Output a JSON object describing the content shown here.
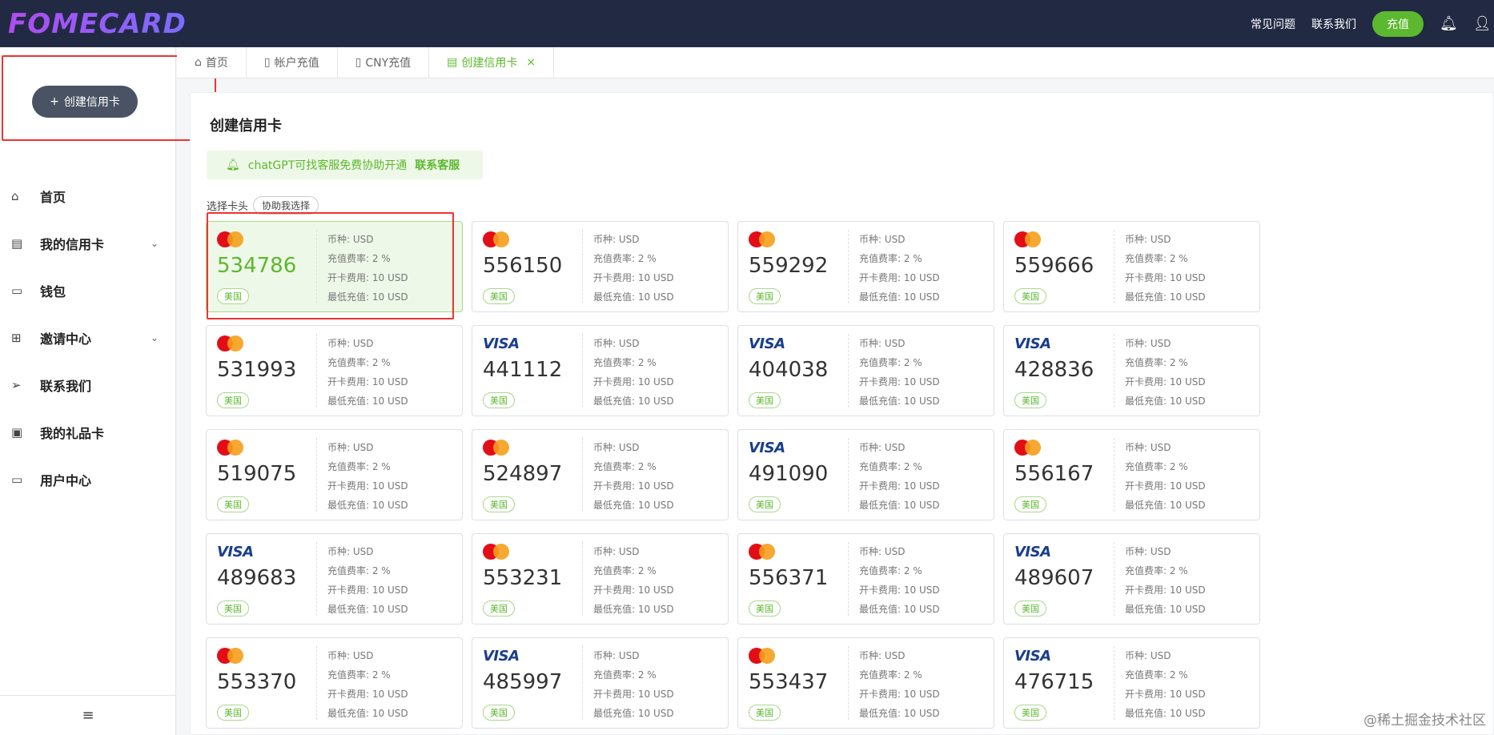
{
  "header": {
    "logo": "FOMECARD",
    "faq": "常见问题",
    "contact": "联系我们",
    "recharge": "充值",
    "icons": [
      "bell-icon",
      "user-icon"
    ]
  },
  "sidebar": {
    "create_button": "创建信用卡",
    "items": [
      {
        "label": "首页",
        "icon": "home-icon",
        "expandable": false
      },
      {
        "label": "我的信用卡",
        "icon": "card-icon",
        "expandable": true
      },
      {
        "label": "钱包",
        "icon": "wallet-icon",
        "expandable": false
      },
      {
        "label": "邀请中心",
        "icon": "gift-icon",
        "expandable": true
      },
      {
        "label": "联系我们",
        "icon": "send-icon",
        "expandable": false
      },
      {
        "label": "我的礼品卡",
        "icon": "giftcard-icon",
        "expandable": false
      },
      {
        "label": "用户中心",
        "icon": "id-card-icon",
        "expandable": false
      }
    ],
    "collapse_icon": "menu-icon"
  },
  "tabs": [
    {
      "label": "首页",
      "icon": "home-icon"
    },
    {
      "label": "帐户充值",
      "icon": "doc-icon"
    },
    {
      "label": "CNY充值",
      "icon": "doc-icon"
    },
    {
      "label": "创建信用卡",
      "icon": "card-icon",
      "active": true,
      "closable": true
    }
  ],
  "main": {
    "title": "创建信用卡",
    "notice": {
      "text": "chatGPT可找客服免费协助开通",
      "link": "联系客服"
    },
    "select_label": "选择卡头",
    "help_button": "协助我选择",
    "labels": {
      "currency": "币种: ",
      "rate": "充值费率: ",
      "fee": "开卡费用: ",
      "min": "最低充值: "
    },
    "cards": [
      {
        "bin": "534786",
        "brand": "mastercard",
        "selected": true
      },
      {
        "bin": "556150",
        "brand": "mastercard"
      },
      {
        "bin": "559292",
        "brand": "mastercard"
      },
      {
        "bin": "559666",
        "brand": "mastercard"
      },
      {
        "bin": "531993",
        "brand": "mastercard"
      },
      {
        "bin": "441112",
        "brand": "visa"
      },
      {
        "bin": "404038",
        "brand": "visa"
      },
      {
        "bin": "428836",
        "brand": "visa"
      },
      {
        "bin": "519075",
        "brand": "mastercard"
      },
      {
        "bin": "524897",
        "brand": "mastercard"
      },
      {
        "bin": "491090",
        "brand": "visa"
      },
      {
        "bin": "556167",
        "brand": "mastercard"
      },
      {
        "bin": "489683",
        "brand": "visa"
      },
      {
        "bin": "553231",
        "brand": "mastercard"
      },
      {
        "bin": "556371",
        "brand": "mastercard"
      },
      {
        "bin": "489607",
        "brand": "visa"
      },
      {
        "bin": "553370",
        "brand": "mastercard"
      },
      {
        "bin": "485997",
        "brand": "visa"
      },
      {
        "bin": "553437",
        "brand": "mastercard"
      },
      {
        "bin": "476715",
        "brand": "visa"
      }
    ],
    "card_defaults": {
      "country": "美国",
      "currency": "USD",
      "rate": "2 %",
      "fee": "10 USD",
      "min": "10 USD"
    },
    "visa_text": "VISA"
  },
  "watermark": "@稀土掘金技术社区",
  "colors": {
    "header": "#222a43",
    "accent": "#5cb82e",
    "highlight": "#e33333"
  }
}
